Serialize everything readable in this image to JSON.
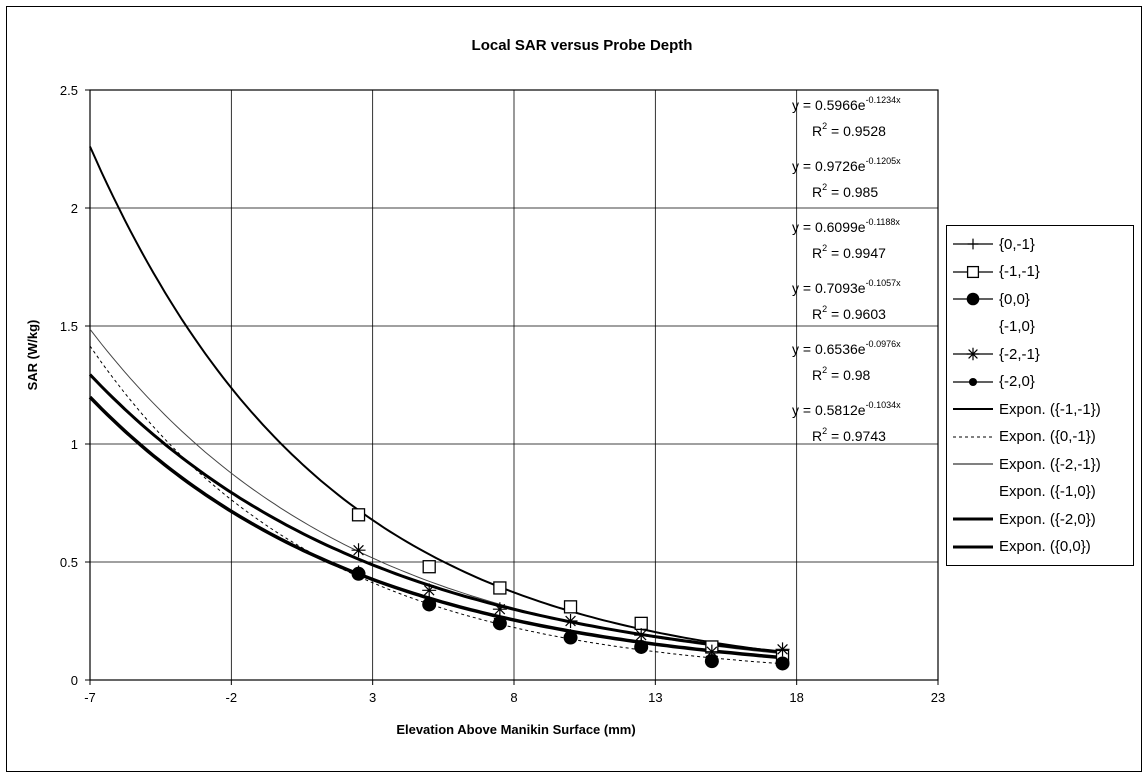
{
  "chart_data": {
    "type": "scatter",
    "title": "Local SAR versus Probe Depth",
    "xlabel": "Elevation Above Manikin Surface (mm)",
    "ylabel": "SAR (W/kg)",
    "xlim": [
      -7,
      23
    ],
    "ylim": [
      0,
      2.5
    ],
    "x_ticks": [
      -7,
      -2,
      3,
      8,
      13,
      18,
      23
    ],
    "y_ticks": [
      0,
      0.5,
      1,
      1.5,
      2,
      2.5
    ],
    "x_tick_labels": [
      "-7",
      "-2",
      "3",
      "8",
      "13",
      "18",
      "23"
    ],
    "y_tick_labels": [
      "0",
      "0.5",
      "1",
      "1.5",
      "2",
      "2.5"
    ],
    "grid": true,
    "legend_position": "right",
    "series": [
      {
        "name": "{0,-1}",
        "marker": "plus",
        "x": [
          2.5,
          5,
          7.5,
          10,
          12.5,
          15,
          17.5
        ],
        "values": [
          0.46,
          0.33,
          0.26,
          0.19,
          0.15,
          0.1,
          0.08
        ]
      },
      {
        "name": "{-1,-1}",
        "marker": "square",
        "x": [
          2.5,
          5,
          7.5,
          10,
          12.5,
          15,
          17.5
        ],
        "values": [
          0.7,
          0.48,
          0.39,
          0.31,
          0.24,
          0.14,
          0.1
        ]
      },
      {
        "name": "{0,0}",
        "marker": "circle-large",
        "x": [
          2.5,
          5,
          7.5,
          10,
          12.5,
          15,
          17.5
        ],
        "values": [
          0.45,
          0.32,
          0.24,
          0.18,
          0.14,
          0.08,
          0.07
        ]
      },
      {
        "name": "{-1,0}",
        "marker": "none",
        "x": [
          2.5,
          5,
          7.5,
          10,
          12.5,
          15,
          17.5
        ],
        "values": [
          0.46,
          0.34,
          0.27,
          0.2,
          0.15,
          0.1,
          0.08
        ]
      },
      {
        "name": "{-2,-1}",
        "marker": "asterisk",
        "x": [
          2.5,
          5,
          7.5,
          10,
          12.5,
          15,
          17.5
        ],
        "values": [
          0.55,
          0.38,
          0.3,
          0.25,
          0.19,
          0.12,
          0.13
        ]
      },
      {
        "name": "{-2,0}",
        "marker": "circle-small",
        "x": [
          2.5,
          5,
          7.5,
          10,
          12.5,
          15,
          17.5
        ],
        "values": [
          0.45,
          0.33,
          0.25,
          0.19,
          0.15,
          0.09,
          0.07
        ]
      }
    ],
    "trendlines": [
      {
        "name": "Expon. ({-1,-1})",
        "a": 0.9726,
        "b": -0.1205,
        "style": "solid",
        "width": 2
      },
      {
        "name": "Expon. ({0,-1})",
        "a": 0.5966,
        "b": -0.1234,
        "style": "dotted",
        "width": 1
      },
      {
        "name": "Expon. ({-2,-1})",
        "a": 0.7093,
        "b": -0.1057,
        "style": "thin",
        "width": 1
      },
      {
        "name": "Expon. ({-1,0})",
        "a": 0.6099,
        "b": -0.1188,
        "style": "none",
        "width": 0
      },
      {
        "name": "Expon. ({-2,0})",
        "a": 0.6536,
        "b": -0.0976,
        "style": "solid",
        "width": 3
      },
      {
        "name": "Expon. ({0,0})",
        "a": 0.5812,
        "b": -0.1034,
        "style": "solid",
        "width": 3.5
      }
    ],
    "equations": [
      {
        "base": "y = 0.5966e",
        "exp": "-0.1234x",
        "r2_label": "R",
        "r2_value": " = 0.9528"
      },
      {
        "base": "y = 0.9726e",
        "exp": "-0.1205x",
        "r2_label": "R",
        "r2_value": " = 0.985"
      },
      {
        "base": "y = 0.6099e",
        "exp": "-0.1188x",
        "r2_label": "R",
        "r2_value": " = 0.9947"
      },
      {
        "base": "y = 0.7093e",
        "exp": "-0.1057x",
        "r2_label": "R",
        "r2_value": " = 0.9603"
      },
      {
        "base": "y = 0.6536e",
        "exp": "-0.0976x",
        "r2_label": "R",
        "r2_value": " = 0.98"
      },
      {
        "base": "y = 0.5812e",
        "exp": "-0.1034x",
        "r2_label": "R",
        "r2_value": " = 0.9743"
      }
    ],
    "r2_superscript": "2",
    "legend": [
      {
        "label": "{0,-1}",
        "symbol": "plus"
      },
      {
        "label": "{-1,-1}",
        "symbol": "square"
      },
      {
        "label": "{0,0}",
        "symbol": "circle-large"
      },
      {
        "label": "{-1,0}",
        "symbol": "none"
      },
      {
        "label": "{-2,-1}",
        "symbol": "asterisk"
      },
      {
        "label": "{-2,0}",
        "symbol": "circle-small"
      },
      {
        "label": "Expon. ({-1,-1})",
        "symbol": "line-solid"
      },
      {
        "label": "Expon. ({0,-1})",
        "symbol": "line-dotted"
      },
      {
        "label": "Expon. ({-2,-1})",
        "symbol": "line-thin"
      },
      {
        "label": "Expon. ({-1,0})",
        "symbol": "none"
      },
      {
        "label": "Expon. ({-2,0})",
        "symbol": "line-thick"
      },
      {
        "label": "Expon. ({0,0})",
        "symbol": "line-thick"
      }
    ]
  }
}
